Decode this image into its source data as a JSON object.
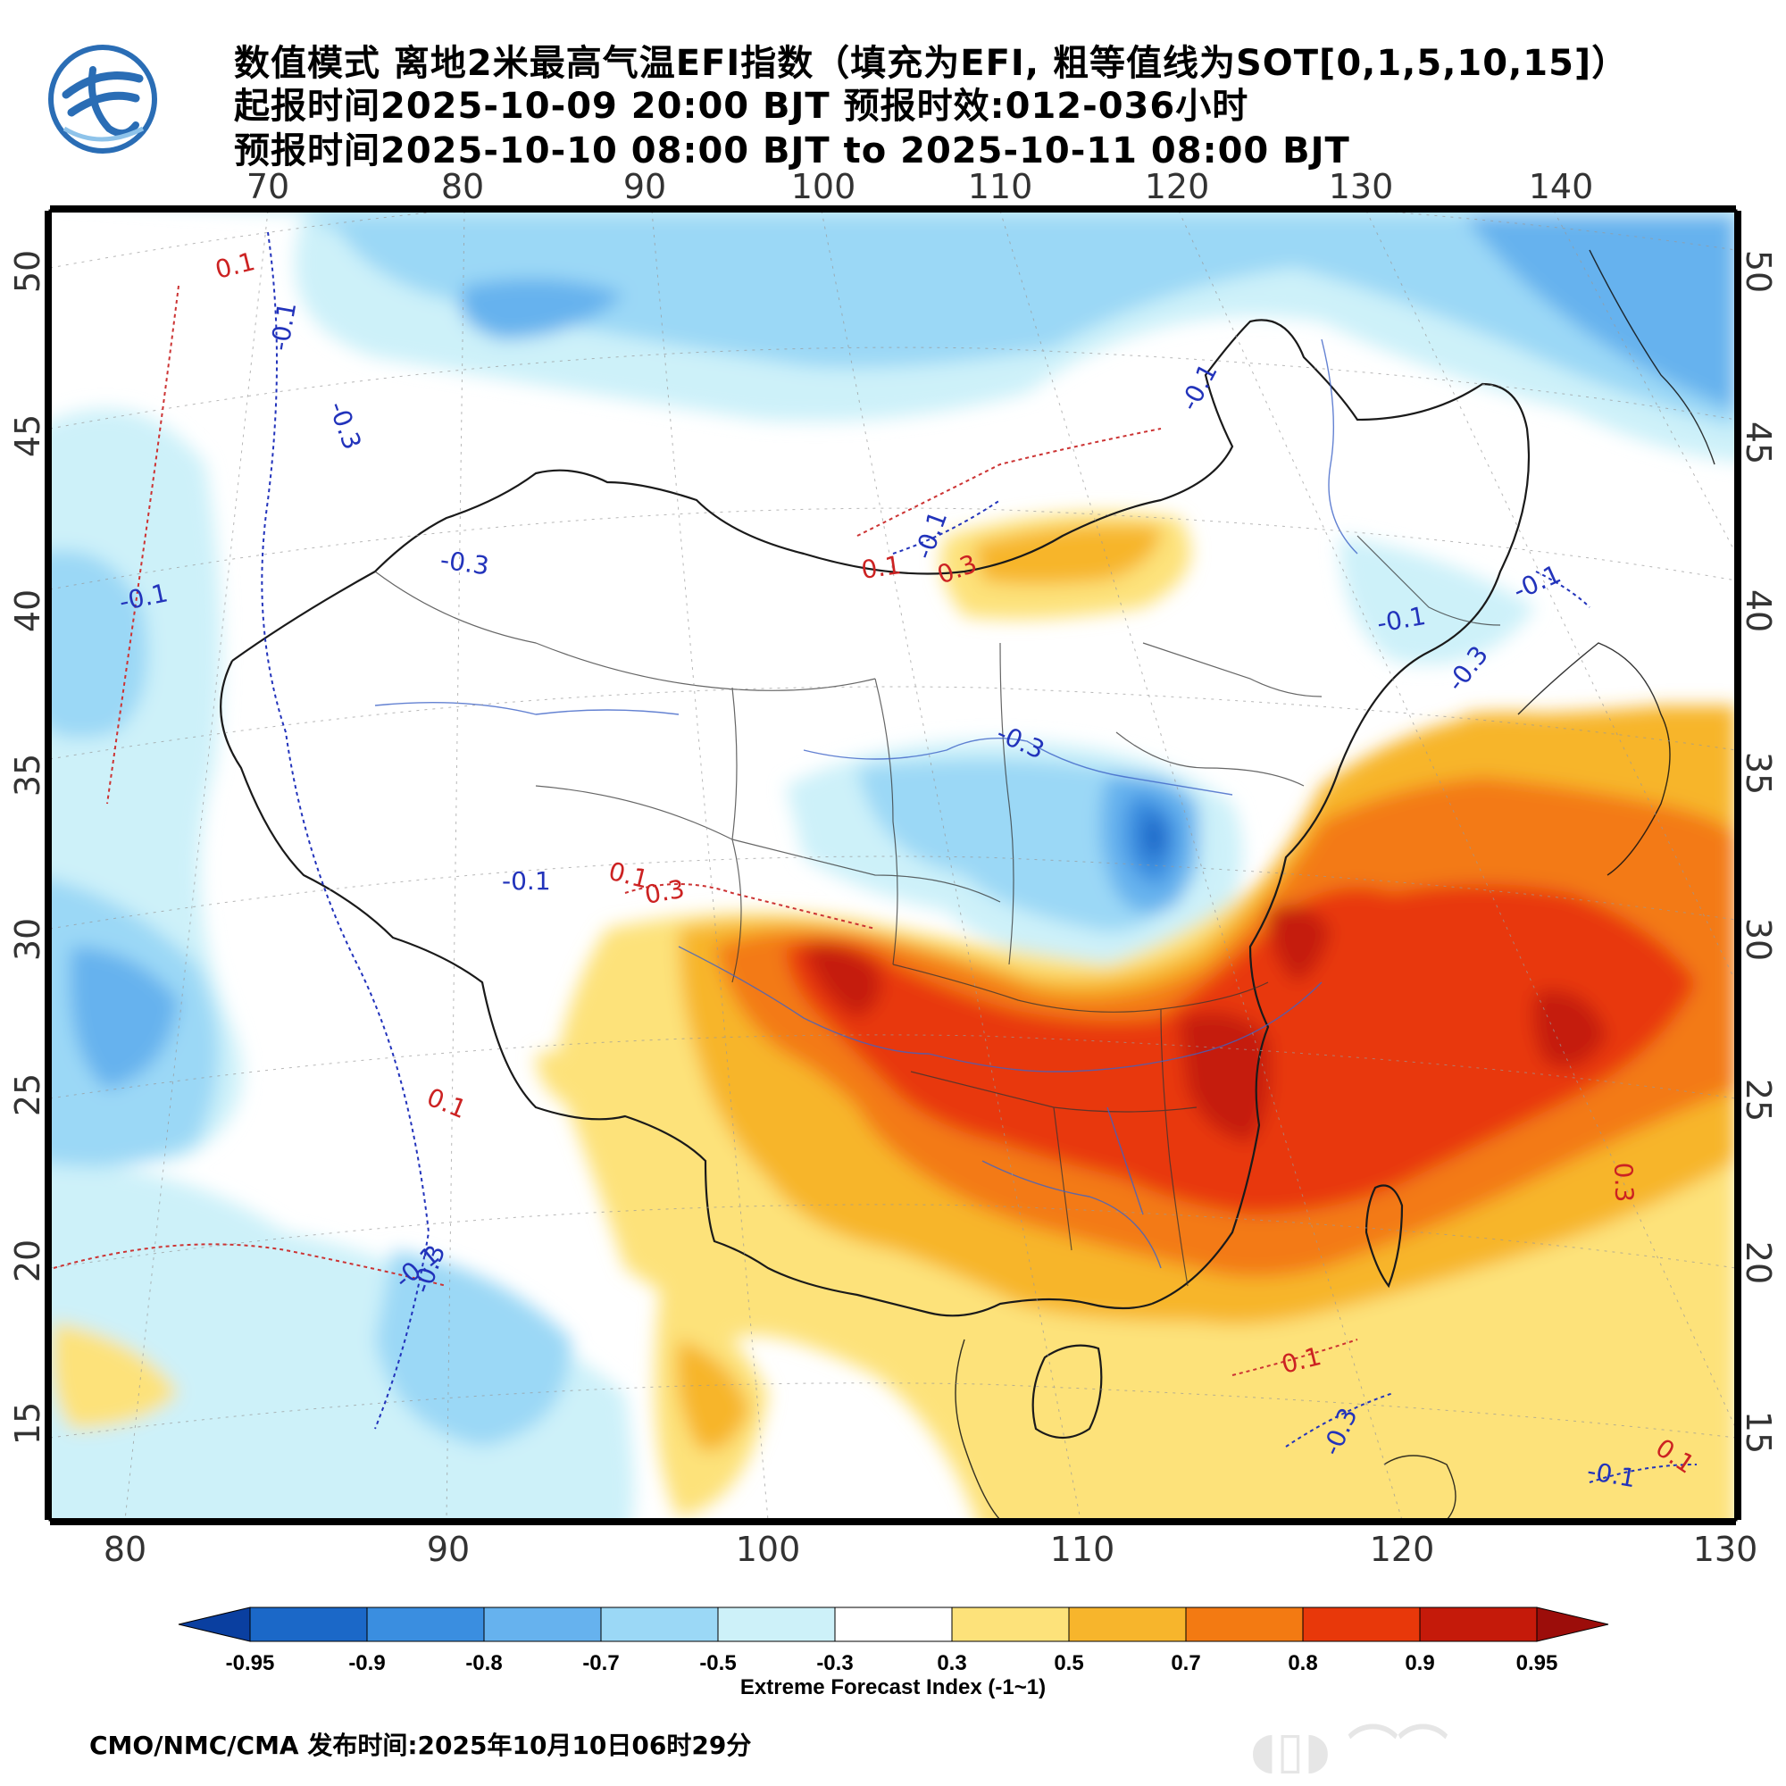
{
  "header": {
    "title_line1": "数值模式 离地2米最高气温EFI指数（填充为EFI, 粗等值线为SOT[0,1,5,10,15]）",
    "title_line2": "起报时间2025-10-09 20:00 BJT 预报时效:012-036小时",
    "title_line3": "预报时间2025-10-10 08:00 BJT to 2025-10-11 08:00 BJT"
  },
  "logo": {
    "icon": "cma-logo-icon",
    "color": "#2a6db5"
  },
  "map": {
    "top_lon_labels": [
      "70",
      "80",
      "90",
      "100",
      "110",
      "120",
      "130",
      "140"
    ],
    "bottom_lon_labels": [
      "80",
      "90",
      "100",
      "110",
      "120",
      "130"
    ],
    "left_lat_labels": [
      "50",
      "45",
      "40",
      "35",
      "30",
      "25",
      "20",
      "15"
    ],
    "right_lat_labels": [
      "50",
      "45",
      "40",
      "35",
      "30",
      "25",
      "20",
      "15"
    ],
    "contour_labels": [
      "0.1",
      "-0.1",
      "-0.3",
      "-0.1",
      "-0.3",
      "-0.1",
      "0.1",
      "-0.1",
      "0.3",
      "-0.1",
      "-0.3",
      "-0.1",
      "-0.3",
      "-0.1",
      "0.1",
      "0.3",
      "0.1",
      "-0.1",
      "-0.3",
      "0.1",
      "0.3",
      "-0.3",
      "-0.1",
      "0.1"
    ]
  },
  "legend": {
    "tick_labels": [
      "-0.95",
      "-0.9",
      "-0.8",
      "-0.7",
      "-0.5",
      "-0.3",
      "0.3",
      "0.5",
      "0.7",
      "0.8",
      "0.9",
      "0.95"
    ],
    "colors": [
      "#0a3fa0",
      "#1b68c8",
      "#3a8ee0",
      "#66b2ee",
      "#9bd8f6",
      "#cdf1f9",
      "#ffffff",
      "#fde27a",
      "#f7b52c",
      "#f37a12",
      "#e8380a",
      "#c51a0a",
      "#9c0d0a"
    ],
    "title": "Extreme Forecast Index (-1~1)"
  },
  "footer": {
    "text": "CMO/NMC/CMA 发布时间:2025年10月10日06时29分"
  }
}
